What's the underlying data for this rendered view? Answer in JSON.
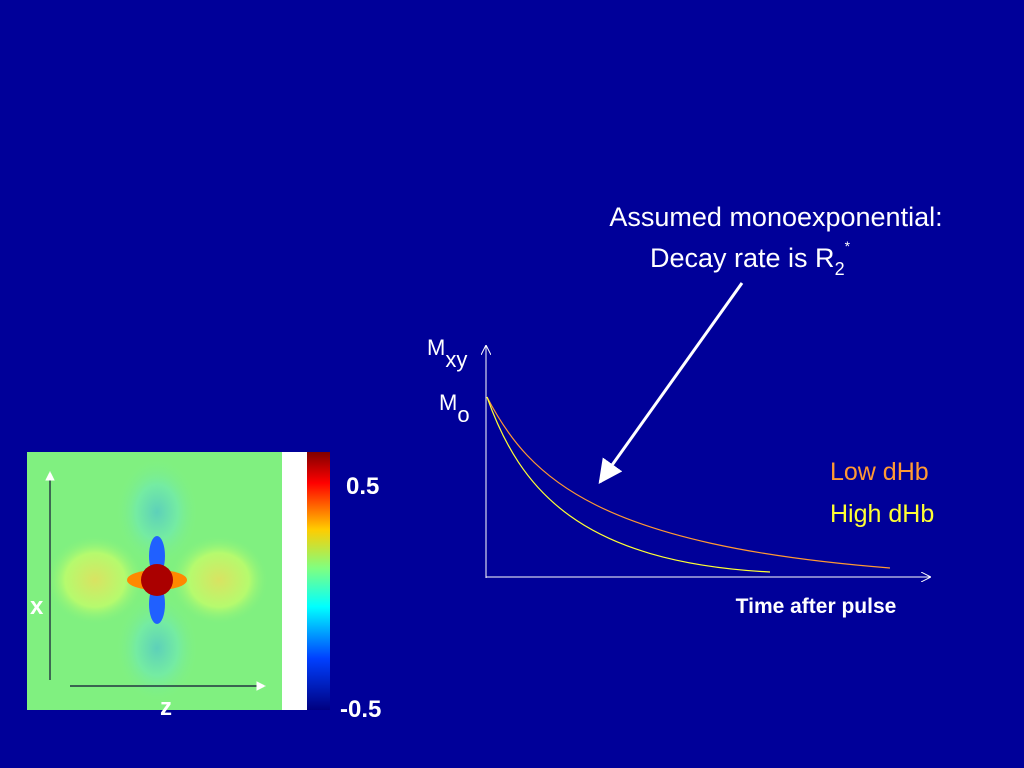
{
  "annotation": {
    "line1": "Assumed monoexponential:",
    "line2": "Decay rate is R",
    "subscript": "2",
    "superscript": "*"
  },
  "plot": {
    "y_label": {
      "main": "M",
      "sub": "xy"
    },
    "m0_label": {
      "main": "M",
      "sub": "o"
    },
    "x_label": "Time after pulse",
    "legend": [
      {
        "label": "Low dHb",
        "color": "#ff9933"
      },
      {
        "label": "High dHb",
        "color": "#ffff33"
      }
    ]
  },
  "field_map": {
    "colorbar_max": "0.5",
    "colorbar_min": "-0.5",
    "x_axis": "x",
    "z_axis": "z"
  }
}
